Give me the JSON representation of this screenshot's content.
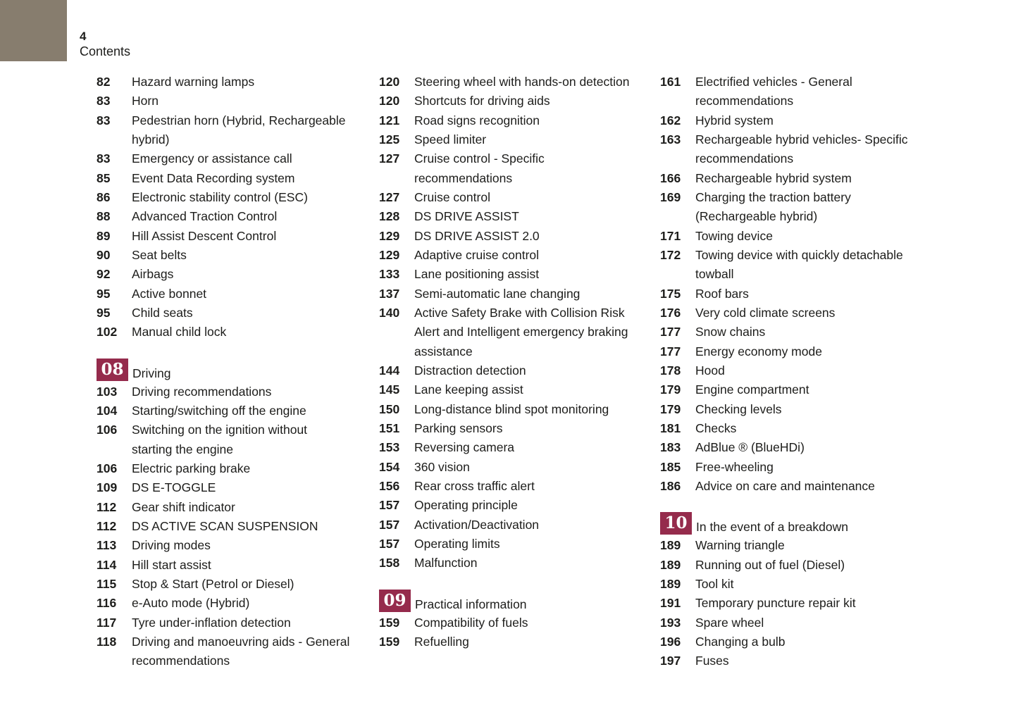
{
  "page": {
    "number": "4",
    "label": "Contents"
  },
  "theme": {
    "badge_color": "#952B4C",
    "tab_color": "#877D6E",
    "text_color": "#1D1D1B"
  },
  "columns": [
    {
      "entries": [
        {
          "page": "82",
          "title": "Hazard warning lamps"
        },
        {
          "page": "83",
          "title": "Horn"
        },
        {
          "page": "83",
          "title": "Pedestrian horn (Hybrid, Rechargeable\nhybrid)"
        },
        {
          "page": "83",
          "title": "Emergency or assistance call"
        },
        {
          "page": "85",
          "title": "Event Data Recording system"
        },
        {
          "page": "86",
          "title": "Electronic stability control (ESC)"
        },
        {
          "page": "88",
          "title": "Advanced Traction Control"
        },
        {
          "page": "89",
          "title": "Hill Assist Descent Control"
        },
        {
          "page": "90",
          "title": "Seat belts"
        },
        {
          "page": "92",
          "title": "Airbags"
        },
        {
          "page": "95",
          "title": "Active bonnet"
        },
        {
          "page": "95",
          "title": "Child seats"
        },
        {
          "page": "102",
          "title": "Manual child lock"
        },
        {
          "badge": "08",
          "title": "Driving"
        },
        {
          "page": "103",
          "title": "Driving recommendations"
        },
        {
          "page": "104",
          "title": "Starting/switching off the engine"
        },
        {
          "page": "106",
          "title": "Switching on the ignition without\nstarting the engine"
        },
        {
          "page": "106",
          "title": "Electric parking brake"
        },
        {
          "page": "109",
          "title": "DS E-TOGGLE"
        },
        {
          "page": "112",
          "title": "Gear shift indicator"
        },
        {
          "page": "112",
          "title": "DS ACTIVE SCAN SUSPENSION"
        },
        {
          "page": "113",
          "title": "Driving modes"
        },
        {
          "page": "114",
          "title": "Hill start assist"
        },
        {
          "page": "115",
          "title": "Stop & Start (Petrol or Diesel)"
        },
        {
          "page": "116",
          "title": "e-Auto mode (Hybrid)"
        },
        {
          "page": "117",
          "title": "Tyre under-inflation detection"
        },
        {
          "page": "118",
          "title": "Driving and manoeuvring aids - General\nrecommendations"
        }
      ]
    },
    {
      "entries": [
        {
          "page": "120",
          "title": "Steering wheel with hands-on detection"
        },
        {
          "page": "120",
          "title": "Shortcuts for driving aids"
        },
        {
          "page": "121",
          "title": "Road signs recognition"
        },
        {
          "page": "125",
          "title": "Speed limiter"
        },
        {
          "page": "127",
          "title": "Cruise control - Specific\nrecommendations"
        },
        {
          "page": "127",
          "title": "Cruise control"
        },
        {
          "page": "128",
          "title": "DS DRIVE ASSIST"
        },
        {
          "page": "129",
          "title": "DS DRIVE ASSIST 2.0"
        },
        {
          "page": "129",
          "title": "Adaptive cruise control"
        },
        {
          "page": "133",
          "title": "Lane positioning assist"
        },
        {
          "page": "137",
          "title": "Semi-automatic lane changing"
        },
        {
          "page": "140",
          "title": "Active Safety Brake with Collision Risk\nAlert and Intelligent emergency braking\nassistance"
        },
        {
          "page": "144",
          "title": "Distraction detection"
        },
        {
          "page": "145",
          "title": "Lane keeping assist"
        },
        {
          "page": "150",
          "title": "Long-distance blind spot monitoring"
        },
        {
          "page": "151",
          "title": "Parking sensors"
        },
        {
          "page": "153",
          "title": "Reversing camera"
        },
        {
          "page": "154",
          "title": "360 vision"
        },
        {
          "page": "156",
          "title": "Rear cross traffic alert"
        },
        {
          "page": "157",
          "title": "Operating principle"
        },
        {
          "page": "157",
          "title": "Activation/Deactivation"
        },
        {
          "page": "157",
          "title": "Operating limits"
        },
        {
          "page": "158",
          "title": "Malfunction"
        },
        {
          "badge": "09",
          "title": "Practical information"
        },
        {
          "page": "159",
          "title": "Compatibility of fuels"
        },
        {
          "page": "159",
          "title": "Refuelling"
        }
      ]
    },
    {
      "entries": [
        {
          "page": "161",
          "title": "Electrified vehicles - General\nrecommendations"
        },
        {
          "page": "162",
          "title": "Hybrid system"
        },
        {
          "page": "163",
          "title": "Rechargeable hybrid vehicles- Specific\nrecommendations"
        },
        {
          "page": "166",
          "title": "Rechargeable hybrid system"
        },
        {
          "page": "169",
          "title": "Charging the traction battery\n(Rechargeable hybrid)"
        },
        {
          "page": "171",
          "title": "Towing device"
        },
        {
          "page": "172",
          "title": "Towing device with quickly detachable\ntowball"
        },
        {
          "page": "175",
          "title": "Roof bars"
        },
        {
          "page": "176",
          "title": "Very cold climate screens"
        },
        {
          "page": "177",
          "title": "Snow chains"
        },
        {
          "page": "177",
          "title": "Energy economy mode"
        },
        {
          "page": "178",
          "title": "Hood"
        },
        {
          "page": "179",
          "title": "Engine compartment"
        },
        {
          "page": "179",
          "title": "Checking levels"
        },
        {
          "page": "181",
          "title": "Checks"
        },
        {
          "page": "183",
          "title": "AdBlue ® (BlueHDi)"
        },
        {
          "page": "185",
          "title": "Free-wheeling"
        },
        {
          "page": "186",
          "title": "Advice on care and maintenance"
        },
        {
          "badge": "10",
          "title": "In the event of a breakdown"
        },
        {
          "page": "189",
          "title": "Warning triangle"
        },
        {
          "page": "189",
          "title": "Running out of fuel (Diesel)"
        },
        {
          "page": "189",
          "title": "Tool kit"
        },
        {
          "page": "191",
          "title": "Temporary puncture repair kit"
        },
        {
          "page": "193",
          "title": "Spare wheel"
        },
        {
          "page": "196",
          "title": "Changing a bulb"
        },
        {
          "page": "197",
          "title": "Fuses"
        }
      ]
    }
  ]
}
